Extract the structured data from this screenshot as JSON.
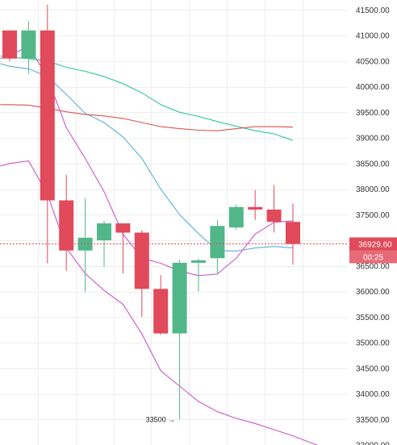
{
  "chart_data": {
    "type": "candlestick",
    "y_axis": {
      "range": [
        33000,
        41600
      ],
      "ticks": [
        41500,
        41000,
        40500,
        40000,
        39500,
        39000,
        38500,
        38000,
        37500,
        37000,
        36500,
        36000,
        35500,
        35000,
        34500,
        34000,
        33500,
        33000
      ],
      "tick_labels": [
        "41500.00",
        "41000.00",
        "40500.00",
        "40000.00",
        "39500.00",
        "39000.00",
        "38500.00",
        "38000.00",
        "37500.00",
        "37000.00",
        "36500.00",
        "36000.00",
        "35500.00",
        "35000.00",
        "34500.00",
        "34000.00",
        "33500.00",
        "33000.00"
      ],
      "position": "right"
    },
    "x_index_range": [
      -0.55,
      16.4
    ],
    "grid": true,
    "colors": {
      "up": "#52b788",
      "down": "#e04a5a",
      "ma_blue": "#5ab0d8",
      "ma_green": "#2ec4a0",
      "ma_red": "#d9534f",
      "ma_magenta": "#cc55cc",
      "current_price_bg": "#e04a5a",
      "grid": "#eeeeee"
    },
    "candles": [
      {
        "open": 41100,
        "high": 41100,
        "low": 40500,
        "close": 40550
      },
      {
        "open": 40550,
        "high": 41280,
        "low": 40250,
        "close": 41100
      },
      {
        "open": 41100,
        "high": 41600,
        "low": 36550,
        "close": 37780
      },
      {
        "open": 37780,
        "high": 38280,
        "low": 36400,
        "close": 36800
      },
      {
        "open": 36800,
        "high": 37820,
        "low": 35990,
        "close": 37050
      },
      {
        "open": 37000,
        "high": 37380,
        "low": 36480,
        "close": 37330
      },
      {
        "open": 37330,
        "high": 37330,
        "low": 36350,
        "close": 37150
      },
      {
        "open": 37150,
        "high": 37200,
        "low": 35500,
        "close": 36050
      },
      {
        "open": 36050,
        "high": 36320,
        "low": 35150,
        "close": 35180
      },
      {
        "open": 35180,
        "high": 36620,
        "low": 33500,
        "close": 36560
      },
      {
        "open": 36560,
        "high": 36640,
        "low": 36000,
        "close": 36610
      },
      {
        "open": 36650,
        "high": 37400,
        "low": 36350,
        "close": 37280
      },
      {
        "open": 37250,
        "high": 37700,
        "low": 37200,
        "close": 37650
      },
      {
        "open": 37650,
        "high": 37980,
        "low": 37400,
        "close": 37600
      },
      {
        "open": 37600,
        "high": 38080,
        "low": 37150,
        "close": 37360
      },
      {
        "open": 37360,
        "high": 37720,
        "low": 36520,
        "close": 36929.6
      }
    ],
    "moving_averages": [
      {
        "color_key": "ma_blue",
        "points": [
          [
            -0.5,
            40450
          ],
          [
            0,
            40400
          ],
          [
            1,
            40350
          ],
          [
            2,
            40200
          ],
          [
            3,
            39850
          ],
          [
            4,
            39480
          ],
          [
            5,
            39300
          ],
          [
            6,
            39020
          ],
          [
            7,
            38600
          ],
          [
            8,
            38000
          ],
          [
            9,
            37500
          ],
          [
            10,
            37130
          ],
          [
            11,
            36800
          ],
          [
            12,
            36790
          ],
          [
            13,
            36850
          ],
          [
            14,
            36880
          ],
          [
            15,
            36850
          ]
        ]
      },
      {
        "color_key": "ma_green",
        "points": [
          [
            -0.5,
            40600
          ],
          [
            0,
            40580
          ],
          [
            1,
            40550
          ],
          [
            2,
            40500
          ],
          [
            3,
            40380
          ],
          [
            4,
            40300
          ],
          [
            5,
            40200
          ],
          [
            6,
            40060
          ],
          [
            7,
            39880
          ],
          [
            8,
            39650
          ],
          [
            9,
            39500
          ],
          [
            10,
            39420
          ],
          [
            11,
            39320
          ],
          [
            12,
            39230
          ],
          [
            13,
            39140
          ],
          [
            14,
            39080
          ],
          [
            15,
            38950
          ]
        ]
      },
      {
        "color_key": "ma_red",
        "points": [
          [
            -0.5,
            39650
          ],
          [
            0,
            39650
          ],
          [
            1,
            39640
          ],
          [
            2,
            39580
          ],
          [
            3,
            39510
          ],
          [
            4,
            39460
          ],
          [
            5,
            39430
          ],
          [
            6,
            39380
          ],
          [
            7,
            39300
          ],
          [
            8,
            39220
          ],
          [
            9,
            39180
          ],
          [
            10,
            39150
          ],
          [
            11,
            39140
          ],
          [
            12,
            39180
          ],
          [
            13,
            39220
          ],
          [
            14,
            39220
          ],
          [
            15,
            39210
          ]
        ]
      },
      {
        "color_key": "ma_magenta",
        "points": [
          [
            -0.5,
            40550
          ],
          [
            0,
            40600
          ],
          [
            1,
            40800
          ],
          [
            2,
            40180
          ],
          [
            3,
            39200
          ],
          [
            4,
            38600
          ],
          [
            5,
            37950
          ],
          [
            6,
            37120
          ],
          [
            7,
            36650
          ],
          [
            8,
            36550
          ],
          [
            9,
            36400
          ],
          [
            10,
            36310
          ],
          [
            11,
            36340
          ],
          [
            12,
            36650
          ],
          [
            13,
            37120
          ],
          [
            14,
            37350
          ],
          [
            15,
            37380
          ]
        ]
      },
      {
        "color_key": "ma_magenta",
        "points": [
          [
            -0.5,
            38450
          ],
          [
            0,
            38500
          ],
          [
            1,
            38550
          ],
          [
            2,
            37900
          ],
          [
            3,
            36850
          ],
          [
            4,
            36350
          ],
          [
            5,
            36020
          ],
          [
            6,
            35750
          ],
          [
            7,
            35170
          ],
          [
            8,
            34450
          ],
          [
            9,
            34150
          ],
          [
            10,
            33850
          ],
          [
            11,
            33650
          ],
          [
            12,
            33520
          ],
          [
            13,
            33420
          ],
          [
            14,
            33300
          ],
          [
            15,
            33180
          ],
          [
            16.4,
            32980
          ]
        ]
      }
    ],
    "current_price": {
      "value": 36929.6,
      "label": "36929.60",
      "countdown": "00:25"
    },
    "annotations": [
      {
        "text": "33500",
        "arrow": "→",
        "candle_index": 9,
        "price": 33500
      }
    ]
  }
}
